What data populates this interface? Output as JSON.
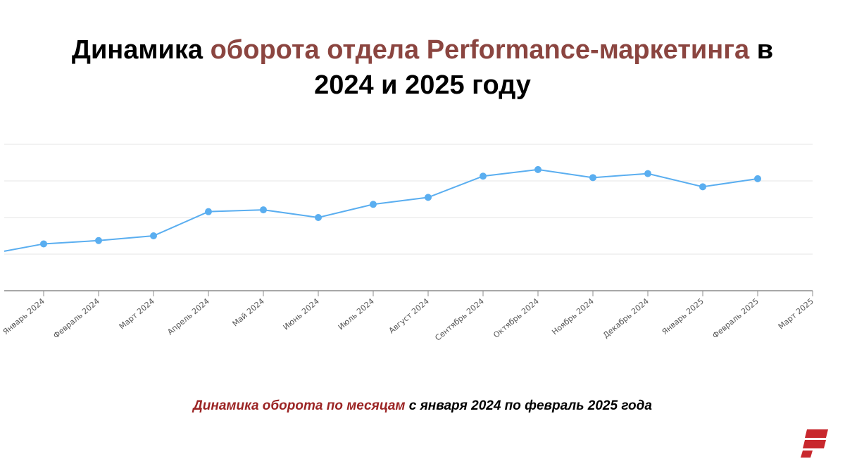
{
  "title": {
    "part1": "Динамика ",
    "accent": "оборота отдела Performance-маркетинга",
    "part2": " в",
    "line2": "2024 и 2025 году"
  },
  "caption": {
    "accent": "Динамика оборота по месяцам",
    "rest": " с января 2024 по февраль 2025 года"
  },
  "colors": {
    "line": "#5aaef0",
    "title_accent": "#8b4540",
    "caption_accent": "#9b2424",
    "logo": "#c8282d"
  },
  "logo_icon": "brand-logo-icon",
  "chart_data": {
    "type": "line",
    "title": "",
    "xlabel": "",
    "ylabel": "",
    "grid": true,
    "ylim": [
      0,
      4
    ],
    "categories": [
      "Январь 2024",
      "Февраль 2024",
      "Март 2024",
      "Апрель 2024",
      "Май 2024",
      "Июнь 2024",
      "Июль 2024",
      "Август 2024",
      "Сентябрь 2024",
      "Октябрь 2024",
      "Ноябрь 2024",
      "Декабрь 2024",
      "Январь 2025",
      "Февраль 2025",
      "Март 2025"
    ],
    "series": [
      {
        "values": [
          1.28,
          1.37,
          1.5,
          2.16,
          2.21,
          2.0,
          2.36,
          2.55,
          3.13,
          3.31,
          3.09,
          3.2,
          2.84,
          3.06,
          null
        ]
      }
    ],
    "leading_value": 1.08
  }
}
